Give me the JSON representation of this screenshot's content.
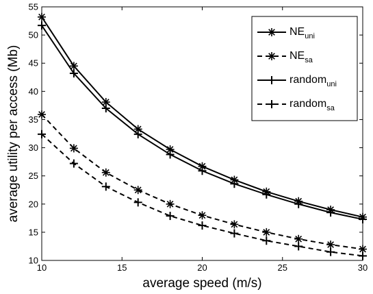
{
  "chart_data": {
    "type": "line",
    "title": "",
    "xlabel": "average speed (m/s)",
    "ylabel": "average utility per access (Mb)",
    "xlim": [
      10,
      30
    ],
    "ylim": [
      10,
      55
    ],
    "xticks": [
      10,
      15,
      20,
      25,
      30
    ],
    "yticks": [
      10,
      15,
      20,
      25,
      30,
      35,
      40,
      45,
      50,
      55
    ],
    "x": [
      10,
      12,
      14,
      16,
      18,
      20,
      22,
      24,
      26,
      28,
      30
    ],
    "grid": false,
    "legend_position": "top-right",
    "series": [
      {
        "name": "NE",
        "name_sub": "uni",
        "marker": "asterisk",
        "line": "solid",
        "values": [
          53.2,
          44.5,
          38.1,
          33.3,
          29.7,
          26.7,
          24.3,
          22.2,
          20.5,
          19.0,
          17.7
        ]
      },
      {
        "name": "NE",
        "name_sub": "sa",
        "marker": "asterisk",
        "line": "dashed",
        "values": [
          35.9,
          29.9,
          25.6,
          22.5,
          20.0,
          18.0,
          16.4,
          15.0,
          13.8,
          12.8,
          12.0
        ]
      },
      {
        "name": "random",
        "name_sub": "uni",
        "marker": "plus",
        "line": "solid",
        "values": [
          51.7,
          43.2,
          37.0,
          32.4,
          28.8,
          25.9,
          23.6,
          21.7,
          20.0,
          18.5,
          17.3
        ]
      },
      {
        "name": "random",
        "name_sub": "sa",
        "marker": "plus",
        "line": "dashed",
        "values": [
          32.4,
          27.2,
          23.1,
          20.3,
          17.9,
          16.2,
          14.8,
          13.5,
          12.5,
          11.5,
          10.8
        ]
      }
    ]
  }
}
